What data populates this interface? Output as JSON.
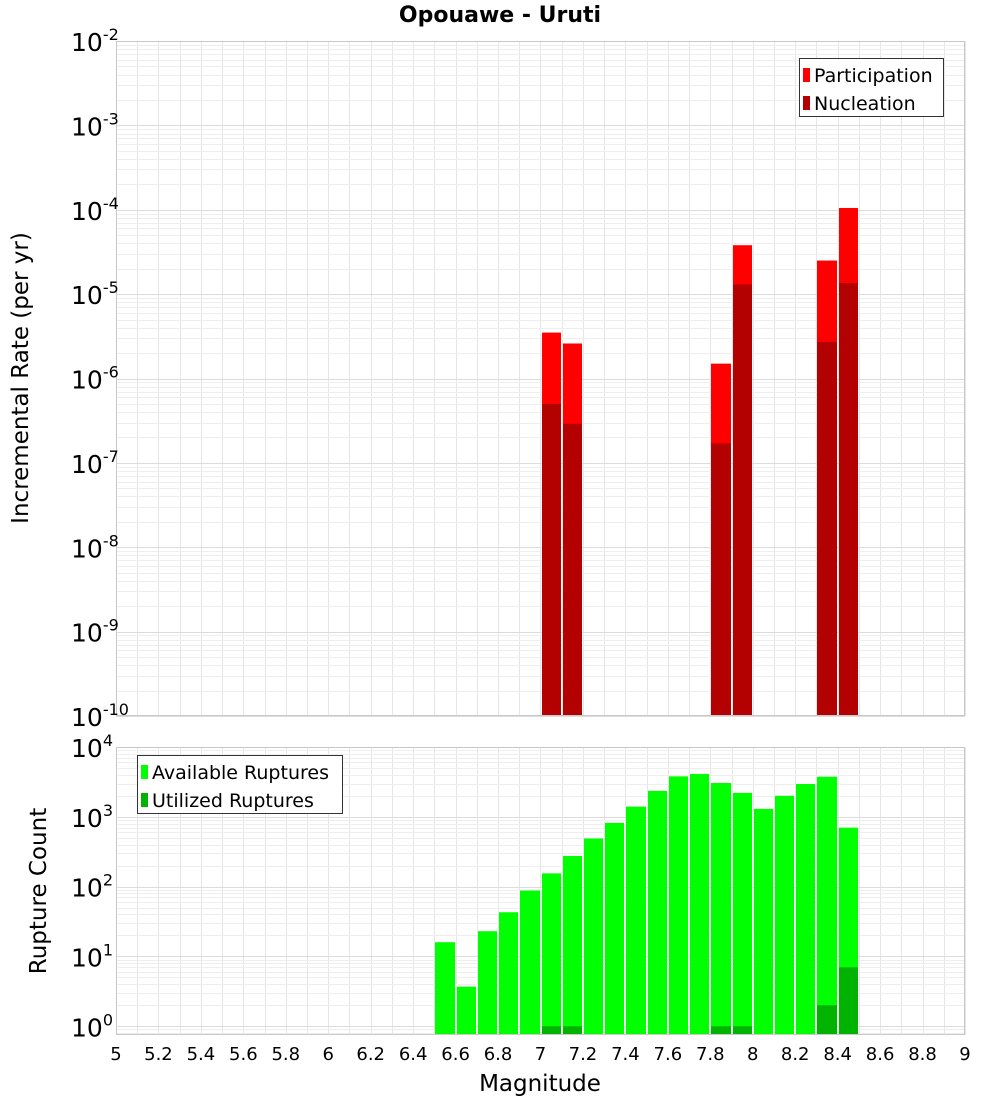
{
  "page_title": "Opouawe - Uruti",
  "chart_data": [
    {
      "type": "bar",
      "id": "rate",
      "title": "Opouawe - Uruti",
      "ylabel": "Incremental Rate (per yr)",
      "yscale": "log",
      "ylim": [
        1e-10,
        0.01
      ],
      "xlim": [
        5,
        9
      ],
      "bar_width": 0.1,
      "grid": true,
      "legend_position": "top-right",
      "y_ticks": [
        {
          "exp": -10,
          "base": "10",
          "sup": "-10"
        },
        {
          "exp": -9,
          "base": "10",
          "sup": "-9"
        },
        {
          "exp": -8,
          "base": "10",
          "sup": "-8"
        },
        {
          "exp": -7,
          "base": "10",
          "sup": "-7"
        },
        {
          "exp": -6,
          "base": "10",
          "sup": "-6"
        },
        {
          "exp": -5,
          "base": "10",
          "sup": "-5"
        },
        {
          "exp": -4,
          "base": "10",
          "sup": "-4"
        },
        {
          "exp": -3,
          "base": "10",
          "sup": "-3"
        },
        {
          "exp": -2,
          "base": "10",
          "sup": "-2"
        }
      ],
      "series": [
        {
          "name": "Participation",
          "color": "#ff0000",
          "points": [
            [
              7.05,
              3.5e-06
            ],
            [
              7.15,
              2.6e-06
            ],
            [
              7.85,
              1.5e-06
            ],
            [
              7.95,
              3.8e-05
            ],
            [
              8.35,
              2.5e-05
            ],
            [
              8.45,
              0.000105
            ]
          ]
        },
        {
          "name": "Nucleation",
          "color": "#b30000",
          "points": [
            [
              7.05,
              5e-07
            ],
            [
              7.15,
              2.9e-07
            ],
            [
              7.85,
              1.7e-07
            ],
            [
              7.95,
              1.3e-05
            ],
            [
              8.35,
              2.7e-06
            ],
            [
              8.45,
              1.35e-05
            ]
          ]
        }
      ]
    },
    {
      "type": "bar",
      "id": "count",
      "ylabel": "Rupture Count",
      "xlabel": "Magnitude",
      "yscale": "log",
      "ylim": [
        0.75,
        10000
      ],
      "xlim": [
        5,
        9
      ],
      "bar_width": 0.1,
      "grid": true,
      "legend_position": "top-left",
      "x_ticks": [
        "5",
        "5.2",
        "5.4",
        "5.6",
        "5.8",
        "6",
        "6.2",
        "6.4",
        "6.6",
        "6.8",
        "7",
        "7.2",
        "7.4",
        "7.6",
        "7.8",
        "8",
        "8.2",
        "8.4",
        "8.6",
        "8.8",
        "9"
      ],
      "y_ticks": [
        {
          "exp": 0,
          "base": "10",
          "sup": "0"
        },
        {
          "exp": 1,
          "base": "10",
          "sup": "1"
        },
        {
          "exp": 2,
          "base": "10",
          "sup": "2"
        },
        {
          "exp": 3,
          "base": "10",
          "sup": "3"
        },
        {
          "exp": 4,
          "base": "10",
          "sup": "4"
        }
      ],
      "series": [
        {
          "name": "Available Ruptures",
          "color": "#00ff00",
          "points": [
            [
              6.55,
              16
            ],
            [
              6.65,
              3.7
            ],
            [
              6.75,
              23
            ],
            [
              6.85,
              43
            ],
            [
              6.95,
              88
            ],
            [
              7.05,
              155
            ],
            [
              7.15,
              275
            ],
            [
              7.25,
              490
            ],
            [
              7.35,
              820
            ],
            [
              7.45,
              1400
            ],
            [
              7.55,
              2350
            ],
            [
              7.65,
              3800
            ],
            [
              7.75,
              4100
            ],
            [
              7.85,
              3050
            ],
            [
              7.95,
              2200
            ],
            [
              8.05,
              1300
            ],
            [
              8.15,
              2000
            ],
            [
              8.25,
              2950
            ],
            [
              8.35,
              3750
            ],
            [
              8.45,
              700
            ]
          ]
        },
        {
          "name": "Utilized Ruptures",
          "color": "#00b300",
          "points": [
            [
              7.05,
              1
            ],
            [
              7.15,
              1
            ],
            [
              7.85,
              1
            ],
            [
              7.95,
              1
            ],
            [
              8.35,
              2
            ],
            [
              8.45,
              7
            ]
          ]
        }
      ]
    }
  ]
}
